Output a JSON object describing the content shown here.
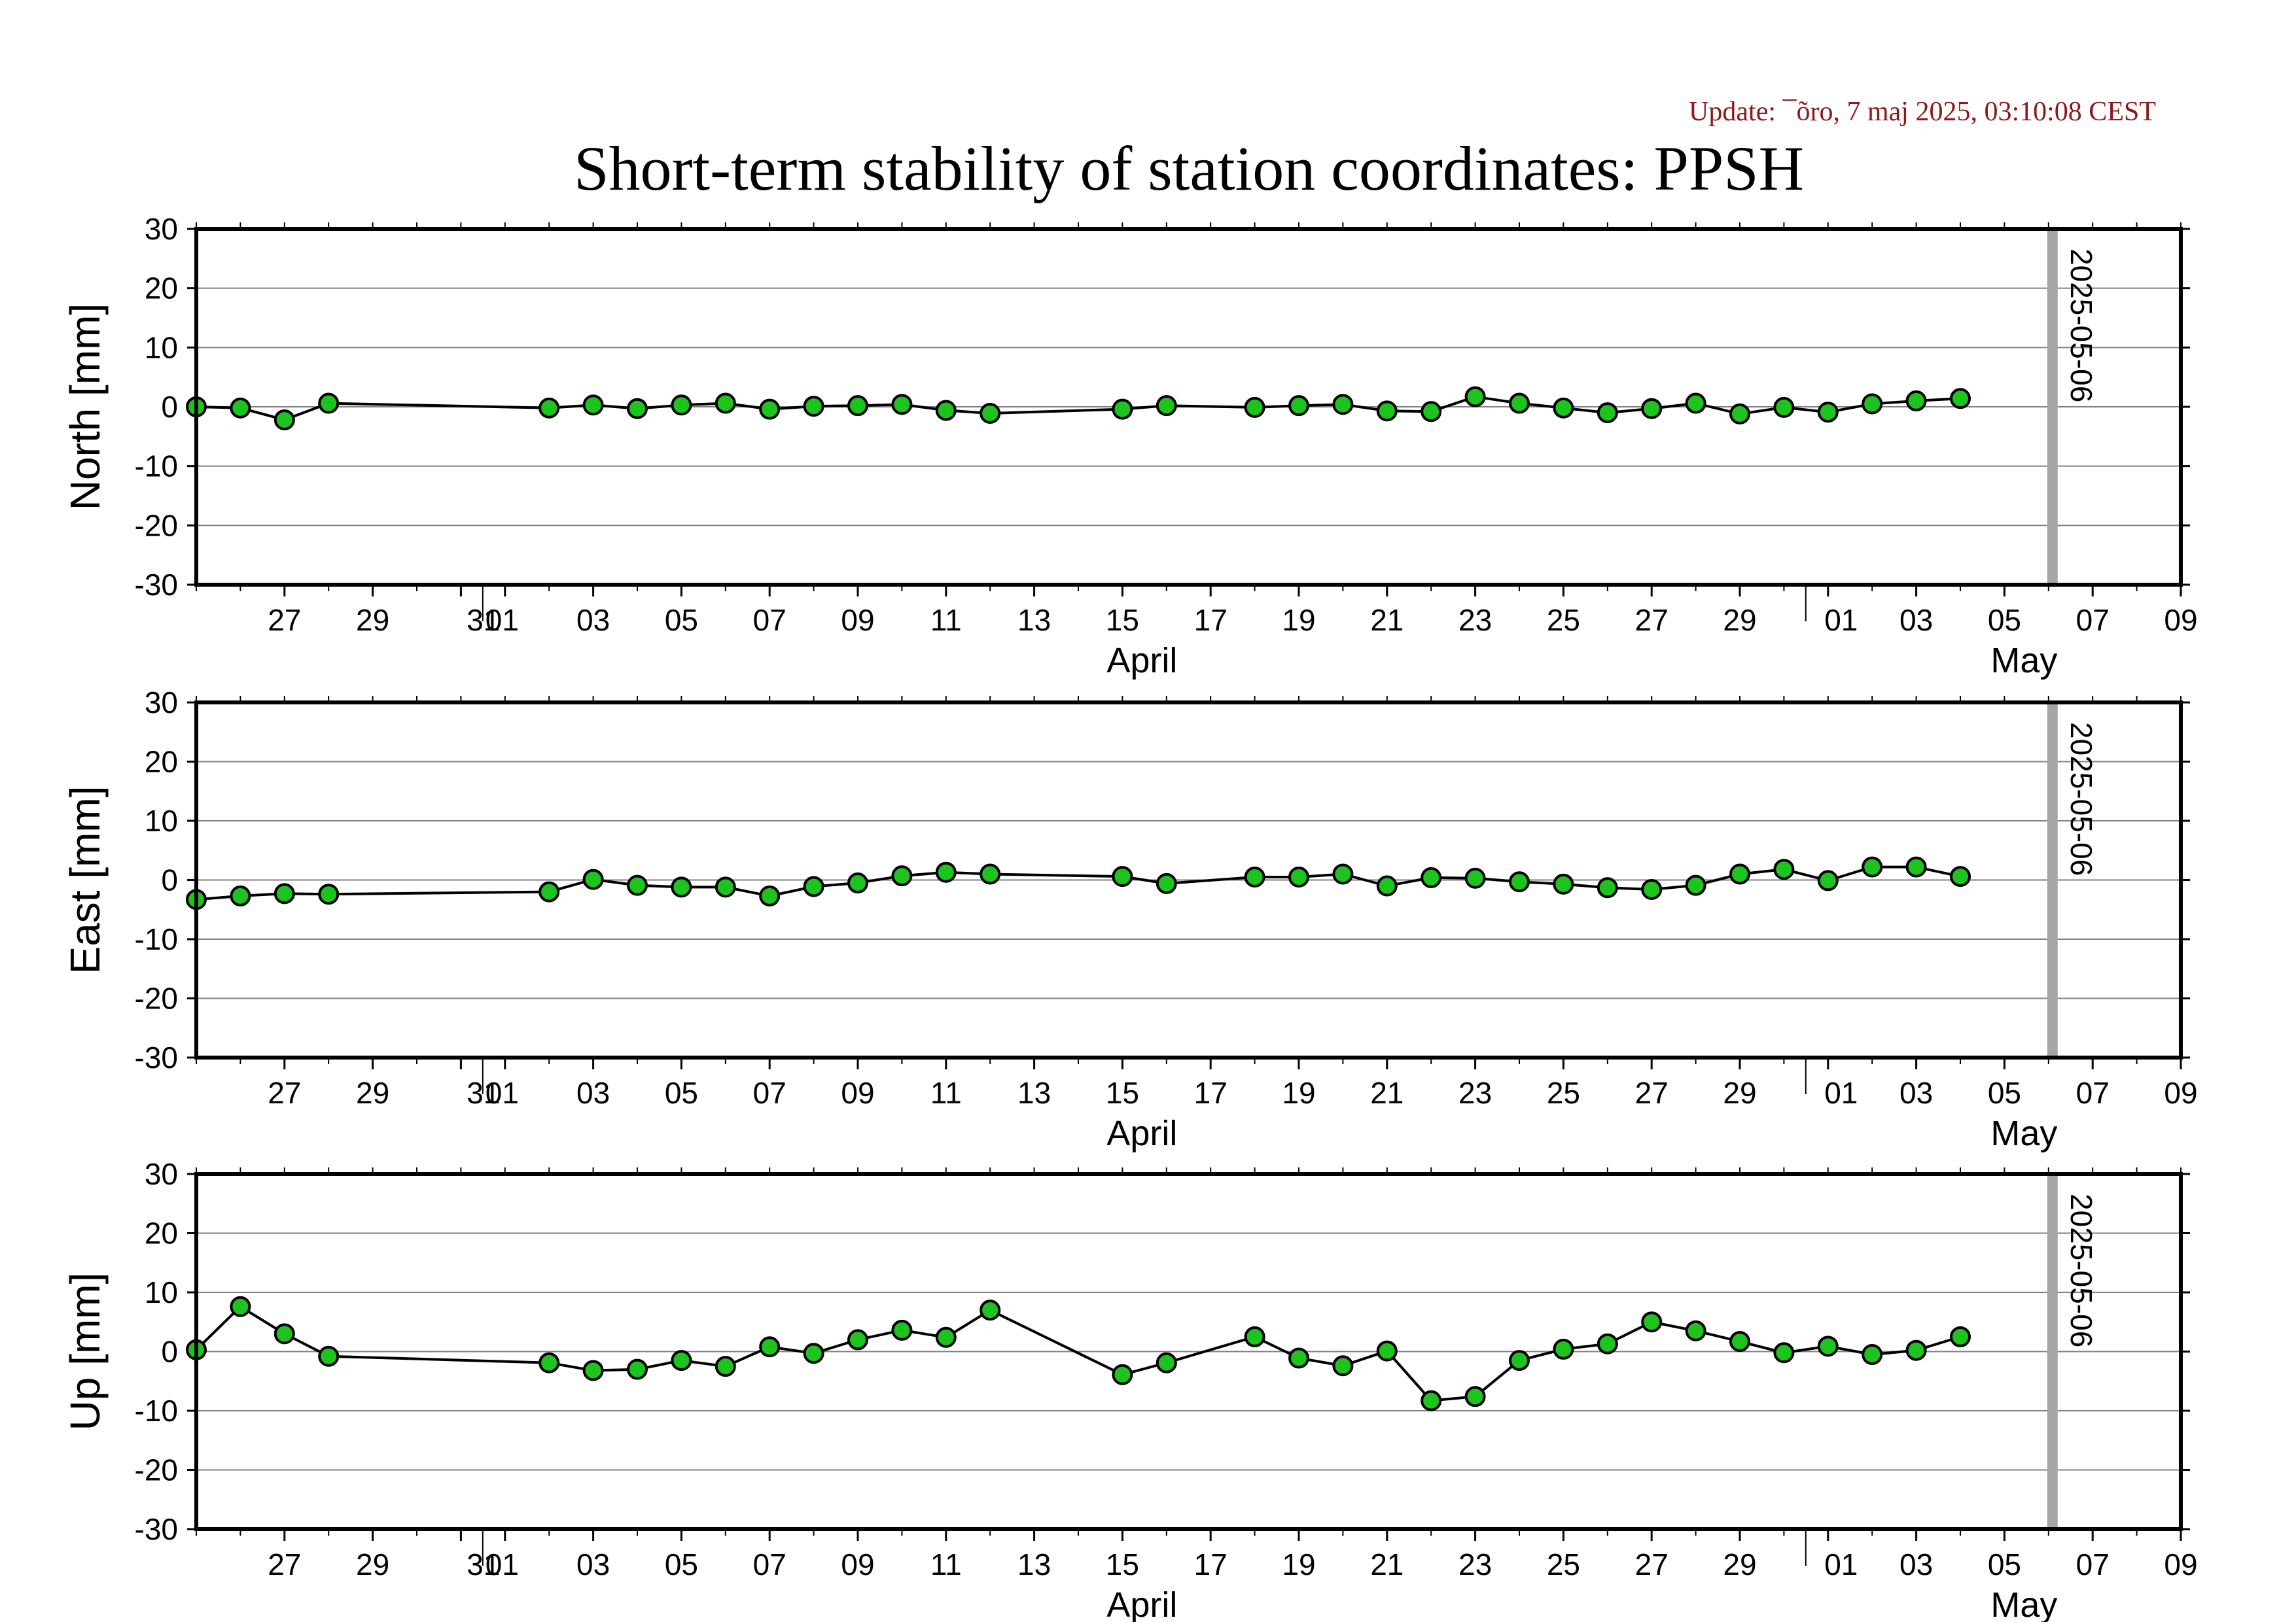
{
  "update_text": "Update: ¯õro, 7 maj 2025, 03:10:08 CEST",
  "title": "Short-term stability of station coordinates: PPSH",
  "colors": {
    "update_text": "#8b1a1a",
    "marker_fill": "#1ec41e",
    "marker_stroke": "#000000",
    "line": "#000000",
    "gridline": "#808080",
    "reference_bar": "#a6a6a6"
  },
  "chart_data": [
    {
      "type": "line",
      "ylabel": "North [mm]",
      "ylim": [
        -30,
        30
      ],
      "yticks": [
        "30",
        "20",
        "10",
        "0",
        "-10",
        "-20",
        "-30"
      ],
      "yticks_values": [
        30,
        20,
        10,
        0,
        -10,
        -20,
        -30
      ],
      "grid": true,
      "xlim": [
        "2025-03-25",
        "2025-05-09"
      ],
      "x_tick_labels": [
        "27",
        "29",
        "31",
        "01",
        "03",
        "05",
        "07",
        "09",
        "11",
        "13",
        "15",
        "17",
        "19",
        "21",
        "23",
        "25",
        "27",
        "29",
        "01",
        "03",
        "05",
        "07",
        "09"
      ],
      "x_tick_dates": [
        "2025-03-27",
        "2025-03-29",
        "2025-03-31",
        "2025-04-01",
        "2025-04-03",
        "2025-04-05",
        "2025-04-07",
        "2025-04-09",
        "2025-04-11",
        "2025-04-13",
        "2025-04-15",
        "2025-04-17",
        "2025-04-19",
        "2025-04-21",
        "2025-04-23",
        "2025-04-25",
        "2025-04-27",
        "2025-04-29",
        "2025-05-01",
        "2025-05-03",
        "2025-05-05",
        "2025-05-07",
        "2025-05-09"
      ],
      "month_labels": [
        "April",
        "May"
      ],
      "month_label_dates": [
        "2025-04-15",
        "2025-05-05"
      ],
      "reference_label": "2025-05-06",
      "reference_date": "2025-05-06",
      "x": [
        "2025-03-25",
        "2025-03-26",
        "2025-03-27",
        "2025-03-28",
        "2025-04-02",
        "2025-04-03",
        "2025-04-04",
        "2025-04-05",
        "2025-04-06",
        "2025-04-07",
        "2025-04-08",
        "2025-04-09",
        "2025-04-10",
        "2025-04-11",
        "2025-04-12",
        "2025-04-15",
        "2025-04-16",
        "2025-04-18",
        "2025-04-19",
        "2025-04-20",
        "2025-04-21",
        "2025-04-22",
        "2025-04-23",
        "2025-04-24",
        "2025-04-25",
        "2025-04-26",
        "2025-04-27",
        "2025-04-28",
        "2025-04-29",
        "2025-04-30",
        "2025-05-01",
        "2025-05-02",
        "2025-05-03",
        "2025-05-04"
      ],
      "y": [
        0,
        -0.2,
        -2.2,
        0.6,
        -0.2,
        0.3,
        -0.3,
        0.3,
        0.6,
        -0.4,
        0.1,
        0.2,
        0.4,
        -0.6,
        -1.1,
        -0.4,
        0.2,
        -0.1,
        0.2,
        0.4,
        -0.7,
        -0.8,
        1.7,
        0.6,
        -0.2,
        -1.0,
        -0.3,
        0.6,
        -1.2,
        -0.1,
        -0.9,
        0.5,
        1.0,
        1.4
      ]
    },
    {
      "type": "line",
      "ylabel": "East [mm]",
      "ylim": [
        -30,
        30
      ],
      "yticks": [
        "30",
        "20",
        "10",
        "0",
        "-10",
        "-20",
        "-30"
      ],
      "yticks_values": [
        30,
        20,
        10,
        0,
        -10,
        -20,
        -30
      ],
      "grid": true,
      "xlim": [
        "2025-03-25",
        "2025-05-09"
      ],
      "x_tick_labels": [
        "27",
        "29",
        "31",
        "01",
        "03",
        "05",
        "07",
        "09",
        "11",
        "13",
        "15",
        "17",
        "19",
        "21",
        "23",
        "25",
        "27",
        "29",
        "01",
        "03",
        "05",
        "07",
        "09"
      ],
      "x_tick_dates": [
        "2025-03-27",
        "2025-03-29",
        "2025-03-31",
        "2025-04-01",
        "2025-04-03",
        "2025-04-05",
        "2025-04-07",
        "2025-04-09",
        "2025-04-11",
        "2025-04-13",
        "2025-04-15",
        "2025-04-17",
        "2025-04-19",
        "2025-04-21",
        "2025-04-23",
        "2025-04-25",
        "2025-04-27",
        "2025-04-29",
        "2025-05-01",
        "2025-05-03",
        "2025-05-05",
        "2025-05-07",
        "2025-05-09"
      ],
      "month_labels": [
        "April",
        "May"
      ],
      "month_label_dates": [
        "2025-04-15",
        "2025-05-05"
      ],
      "reference_label": "2025-05-06",
      "reference_date": "2025-05-06",
      "x": [
        "2025-03-25",
        "2025-03-26",
        "2025-03-27",
        "2025-03-28",
        "2025-04-02",
        "2025-04-03",
        "2025-04-04",
        "2025-04-05",
        "2025-04-06",
        "2025-04-07",
        "2025-04-08",
        "2025-04-09",
        "2025-04-10",
        "2025-04-11",
        "2025-04-12",
        "2025-04-15",
        "2025-04-16",
        "2025-04-18",
        "2025-04-19",
        "2025-04-20",
        "2025-04-21",
        "2025-04-22",
        "2025-04-23",
        "2025-04-24",
        "2025-04-25",
        "2025-04-26",
        "2025-04-27",
        "2025-04-28",
        "2025-04-29",
        "2025-04-30",
        "2025-05-01",
        "2025-05-02",
        "2025-05-03",
        "2025-05-04"
      ],
      "y": [
        -3.3,
        -2.7,
        -2.3,
        -2.4,
        -2.0,
        0.1,
        -0.9,
        -1.2,
        -1.2,
        -2.7,
        -1.1,
        -0.5,
        0.7,
        1.3,
        1.0,
        0.6,
        -0.6,
        0.5,
        0.5,
        1.0,
        -1.0,
        0.4,
        0.3,
        -0.3,
        -0.7,
        -1.3,
        -1.6,
        -0.9,
        1.0,
        1.8,
        -0.1,
        2.2,
        2.2,
        0.6
      ]
    },
    {
      "type": "line",
      "ylabel": "Up [mm]",
      "ylim": [
        -30,
        30
      ],
      "yticks": [
        "30",
        "20",
        "10",
        "0",
        "-10",
        "-20",
        "-30"
      ],
      "yticks_values": [
        30,
        20,
        10,
        0,
        -10,
        -20,
        -30
      ],
      "grid": true,
      "xlim": [
        "2025-03-25",
        "2025-05-09"
      ],
      "x_tick_labels": [
        "27",
        "29",
        "31",
        "01",
        "03",
        "05",
        "07",
        "09",
        "11",
        "13",
        "15",
        "17",
        "19",
        "21",
        "23",
        "25",
        "27",
        "29",
        "01",
        "03",
        "05",
        "07",
        "09"
      ],
      "x_tick_dates": [
        "2025-03-27",
        "2025-03-29",
        "2025-03-31",
        "2025-04-01",
        "2025-04-03",
        "2025-04-05",
        "2025-04-07",
        "2025-04-09",
        "2025-04-11",
        "2025-04-13",
        "2025-04-15",
        "2025-04-17",
        "2025-04-19",
        "2025-04-21",
        "2025-04-23",
        "2025-04-25",
        "2025-04-27",
        "2025-04-29",
        "2025-05-01",
        "2025-05-03",
        "2025-05-05",
        "2025-05-07",
        "2025-05-09"
      ],
      "month_labels": [
        "April",
        "May"
      ],
      "month_label_dates": [
        "2025-04-15",
        "2025-05-05"
      ],
      "reference_label": "2025-05-06",
      "reference_date": "2025-05-06",
      "x": [
        "2025-03-25",
        "2025-03-26",
        "2025-03-27",
        "2025-03-28",
        "2025-04-02",
        "2025-04-03",
        "2025-04-04",
        "2025-04-05",
        "2025-04-06",
        "2025-04-07",
        "2025-04-08",
        "2025-04-09",
        "2025-04-10",
        "2025-04-11",
        "2025-04-12",
        "2025-04-15",
        "2025-04-16",
        "2025-04-18",
        "2025-04-19",
        "2025-04-20",
        "2025-04-21",
        "2025-04-22",
        "2025-04-23",
        "2025-04-24",
        "2025-04-25",
        "2025-04-26",
        "2025-04-27",
        "2025-04-28",
        "2025-04-29",
        "2025-04-30",
        "2025-05-01",
        "2025-05-02",
        "2025-05-03",
        "2025-05-04"
      ],
      "y": [
        0.3,
        7.6,
        3.0,
        -0.8,
        -1.9,
        -3.2,
        -3.0,
        -1.5,
        -2.5,
        0.8,
        -0.3,
        2.0,
        3.6,
        2.4,
        7.0,
        -3.9,
        -1.9,
        2.5,
        -1.1,
        -2.4,
        0.1,
        -8.3,
        -7.6,
        -1.5,
        0.4,
        1.3,
        5.0,
        3.5,
        1.7,
        -0.2,
        0.9,
        -0.5,
        0.2,
        2.5
      ]
    }
  ]
}
